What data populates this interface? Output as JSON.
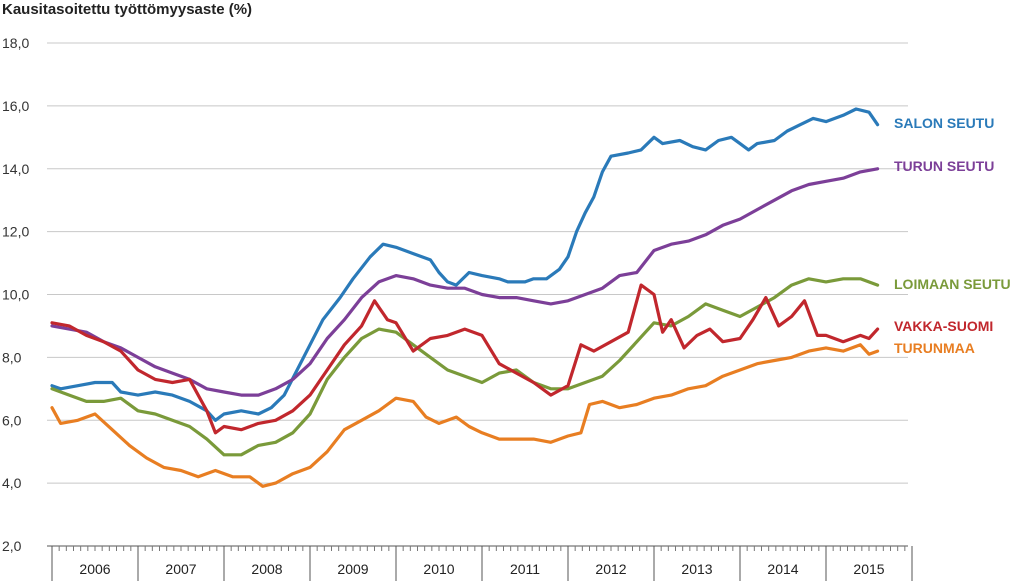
{
  "chart_data": {
    "type": "line",
    "title": "Kausitasoitettu työttömyysaste (%)",
    "xlabel": "",
    "ylabel": "",
    "ylim": [
      2.0,
      18.0
    ],
    "yticks": [
      "2,0",
      "4,0",
      "6,0",
      "8,0",
      "10,0",
      "12,0",
      "14,0",
      "16,0",
      "18,0"
    ],
    "ytick_values": [
      2,
      4,
      6,
      8,
      10,
      12,
      14,
      16,
      18
    ],
    "xlim": [
      2006.0,
      2015.7
    ],
    "years": [
      "2006",
      "2007",
      "2008",
      "2009",
      "2010",
      "2011",
      "2012",
      "2013",
      "2014",
      "2015"
    ],
    "grid": true,
    "series": [
      {
        "name": "SALON SEUTU",
        "color": "#2a7ab9",
        "points": [
          [
            2006.0,
            7.1
          ],
          [
            2006.1,
            7.0
          ],
          [
            2006.3,
            7.1
          ],
          [
            2006.5,
            7.2
          ],
          [
            2006.7,
            7.2
          ],
          [
            2006.8,
            6.9
          ],
          [
            2007.0,
            6.8
          ],
          [
            2007.2,
            6.9
          ],
          [
            2007.4,
            6.8
          ],
          [
            2007.6,
            6.6
          ],
          [
            2007.8,
            6.3
          ],
          [
            2007.9,
            6.0
          ],
          [
            2008.0,
            6.2
          ],
          [
            2008.2,
            6.3
          ],
          [
            2008.4,
            6.2
          ],
          [
            2008.55,
            6.4
          ],
          [
            2008.7,
            6.8
          ],
          [
            2008.85,
            7.6
          ],
          [
            2009.0,
            8.4
          ],
          [
            2009.15,
            9.2
          ],
          [
            2009.35,
            9.9
          ],
          [
            2009.5,
            10.5
          ],
          [
            2009.7,
            11.2
          ],
          [
            2009.85,
            11.6
          ],
          [
            2010.0,
            11.5
          ],
          [
            2010.2,
            11.3
          ],
          [
            2010.4,
            11.1
          ],
          [
            2010.5,
            10.7
          ],
          [
            2010.6,
            10.4
          ],
          [
            2010.7,
            10.3
          ],
          [
            2010.85,
            10.7
          ],
          [
            2011.0,
            10.6
          ],
          [
            2011.2,
            10.5
          ],
          [
            2011.3,
            10.4
          ],
          [
            2011.5,
            10.4
          ],
          [
            2011.6,
            10.5
          ],
          [
            2011.75,
            10.5
          ],
          [
            2011.9,
            10.8
          ],
          [
            2012.0,
            11.2
          ],
          [
            2012.1,
            12.0
          ],
          [
            2012.2,
            12.6
          ],
          [
            2012.3,
            13.1
          ],
          [
            2012.4,
            13.9
          ],
          [
            2012.5,
            14.4
          ],
          [
            2012.7,
            14.5
          ],
          [
            2012.85,
            14.6
          ],
          [
            2013.0,
            15.0
          ],
          [
            2013.1,
            14.8
          ],
          [
            2013.3,
            14.9
          ],
          [
            2013.45,
            14.7
          ],
          [
            2013.6,
            14.6
          ],
          [
            2013.75,
            14.9
          ],
          [
            2013.9,
            15.0
          ],
          [
            2014.0,
            14.8
          ],
          [
            2014.1,
            14.6
          ],
          [
            2014.2,
            14.8
          ],
          [
            2014.4,
            14.9
          ],
          [
            2014.55,
            15.2
          ],
          [
            2014.7,
            15.4
          ],
          [
            2014.85,
            15.6
          ],
          [
            2015.0,
            15.5
          ],
          [
            2015.2,
            15.7
          ],
          [
            2015.35,
            15.9
          ],
          [
            2015.5,
            15.8
          ],
          [
            2015.6,
            15.4
          ]
        ]
      },
      {
        "name": "TURUN SEUTU",
        "color": "#7c3f98",
        "points": [
          [
            2006.0,
            9.0
          ],
          [
            2006.2,
            8.9
          ],
          [
            2006.4,
            8.8
          ],
          [
            2006.6,
            8.5
          ],
          [
            2006.8,
            8.3
          ],
          [
            2007.0,
            8.0
          ],
          [
            2007.2,
            7.7
          ],
          [
            2007.4,
            7.5
          ],
          [
            2007.6,
            7.3
          ],
          [
            2007.8,
            7.0
          ],
          [
            2008.0,
            6.9
          ],
          [
            2008.2,
            6.8
          ],
          [
            2008.4,
            6.8
          ],
          [
            2008.6,
            7.0
          ],
          [
            2008.8,
            7.3
          ],
          [
            2009.0,
            7.8
          ],
          [
            2009.2,
            8.6
          ],
          [
            2009.4,
            9.2
          ],
          [
            2009.6,
            9.9
          ],
          [
            2009.8,
            10.4
          ],
          [
            2010.0,
            10.6
          ],
          [
            2010.2,
            10.5
          ],
          [
            2010.4,
            10.3
          ],
          [
            2010.6,
            10.2
          ],
          [
            2010.8,
            10.2
          ],
          [
            2011.0,
            10.0
          ],
          [
            2011.2,
            9.9
          ],
          [
            2011.4,
            9.9
          ],
          [
            2011.6,
            9.8
          ],
          [
            2011.8,
            9.7
          ],
          [
            2012.0,
            9.8
          ],
          [
            2012.2,
            10.0
          ],
          [
            2012.4,
            10.2
          ],
          [
            2012.6,
            10.6
          ],
          [
            2012.8,
            10.7
          ],
          [
            2013.0,
            11.4
          ],
          [
            2013.2,
            11.6
          ],
          [
            2013.4,
            11.7
          ],
          [
            2013.6,
            11.9
          ],
          [
            2013.8,
            12.2
          ],
          [
            2014.0,
            12.4
          ],
          [
            2014.2,
            12.7
          ],
          [
            2014.4,
            13.0
          ],
          [
            2014.6,
            13.3
          ],
          [
            2014.8,
            13.5
          ],
          [
            2015.0,
            13.6
          ],
          [
            2015.2,
            13.7
          ],
          [
            2015.4,
            13.9
          ],
          [
            2015.6,
            14.0
          ]
        ]
      },
      {
        "name": "LOIMAAN SEUTU",
        "color": "#7a9a3a",
        "points": [
          [
            2006.0,
            7.0
          ],
          [
            2006.2,
            6.8
          ],
          [
            2006.4,
            6.6
          ],
          [
            2006.6,
            6.6
          ],
          [
            2006.8,
            6.7
          ],
          [
            2007.0,
            6.3
          ],
          [
            2007.2,
            6.2
          ],
          [
            2007.4,
            6.0
          ],
          [
            2007.6,
            5.8
          ],
          [
            2007.8,
            5.4
          ],
          [
            2008.0,
            4.9
          ],
          [
            2008.2,
            4.9
          ],
          [
            2008.4,
            5.2
          ],
          [
            2008.6,
            5.3
          ],
          [
            2008.8,
            5.6
          ],
          [
            2009.0,
            6.2
          ],
          [
            2009.2,
            7.3
          ],
          [
            2009.4,
            8.0
          ],
          [
            2009.6,
            8.6
          ],
          [
            2009.8,
            8.9
          ],
          [
            2010.0,
            8.8
          ],
          [
            2010.2,
            8.4
          ],
          [
            2010.4,
            8.0
          ],
          [
            2010.6,
            7.6
          ],
          [
            2010.8,
            7.4
          ],
          [
            2011.0,
            7.2
          ],
          [
            2011.2,
            7.5
          ],
          [
            2011.4,
            7.6
          ],
          [
            2011.6,
            7.2
          ],
          [
            2011.8,
            7.0
          ],
          [
            2012.0,
            7.0
          ],
          [
            2012.2,
            7.2
          ],
          [
            2012.4,
            7.4
          ],
          [
            2012.6,
            7.9
          ],
          [
            2012.8,
            8.5
          ],
          [
            2013.0,
            9.1
          ],
          [
            2013.2,
            9.0
          ],
          [
            2013.4,
            9.3
          ],
          [
            2013.6,
            9.7
          ],
          [
            2013.8,
            9.5
          ],
          [
            2014.0,
            9.3
          ],
          [
            2014.2,
            9.6
          ],
          [
            2014.4,
            9.9
          ],
          [
            2014.6,
            10.3
          ],
          [
            2014.8,
            10.5
          ],
          [
            2015.0,
            10.4
          ],
          [
            2015.2,
            10.5
          ],
          [
            2015.4,
            10.5
          ],
          [
            2015.6,
            10.3
          ]
        ]
      },
      {
        "name": "VAKKA-SUOMI",
        "color": "#c1272d",
        "points": [
          [
            2006.0,
            9.1
          ],
          [
            2006.2,
            9.0
          ],
          [
            2006.4,
            8.7
          ],
          [
            2006.6,
            8.5
          ],
          [
            2006.8,
            8.2
          ],
          [
            2007.0,
            7.6
          ],
          [
            2007.2,
            7.3
          ],
          [
            2007.4,
            7.2
          ],
          [
            2007.6,
            7.3
          ],
          [
            2007.8,
            6.3
          ],
          [
            2007.9,
            5.6
          ],
          [
            2008.0,
            5.8
          ],
          [
            2008.2,
            5.7
          ],
          [
            2008.4,
            5.9
          ],
          [
            2008.6,
            6.0
          ],
          [
            2008.8,
            6.3
          ],
          [
            2009.0,
            6.8
          ],
          [
            2009.2,
            7.6
          ],
          [
            2009.4,
            8.4
          ],
          [
            2009.6,
            9.0
          ],
          [
            2009.75,
            9.8
          ],
          [
            2009.9,
            9.2
          ],
          [
            2010.0,
            9.1
          ],
          [
            2010.2,
            8.2
          ],
          [
            2010.4,
            8.6
          ],
          [
            2010.6,
            8.7
          ],
          [
            2010.8,
            8.9
          ],
          [
            2011.0,
            8.7
          ],
          [
            2011.2,
            7.8
          ],
          [
            2011.4,
            7.5
          ],
          [
            2011.6,
            7.2
          ],
          [
            2011.8,
            6.8
          ],
          [
            2012.0,
            7.1
          ],
          [
            2012.15,
            8.4
          ],
          [
            2012.3,
            8.2
          ],
          [
            2012.5,
            8.5
          ],
          [
            2012.7,
            8.8
          ],
          [
            2012.85,
            10.3
          ],
          [
            2013.0,
            10.0
          ],
          [
            2013.1,
            8.8
          ],
          [
            2013.2,
            9.2
          ],
          [
            2013.35,
            8.3
          ],
          [
            2013.5,
            8.7
          ],
          [
            2013.65,
            8.9
          ],
          [
            2013.8,
            8.5
          ],
          [
            2014.0,
            8.6
          ],
          [
            2014.15,
            9.2
          ],
          [
            2014.3,
            9.9
          ],
          [
            2014.45,
            9.0
          ],
          [
            2014.6,
            9.3
          ],
          [
            2014.75,
            9.8
          ],
          [
            2014.9,
            8.7
          ],
          [
            2015.0,
            8.7
          ],
          [
            2015.2,
            8.5
          ],
          [
            2015.4,
            8.7
          ],
          [
            2015.5,
            8.6
          ],
          [
            2015.6,
            8.9
          ]
        ]
      },
      {
        "name": "TURUNMAA",
        "color": "#e87e22",
        "points": [
          [
            2006.0,
            6.4
          ],
          [
            2006.1,
            5.9
          ],
          [
            2006.3,
            6.0
          ],
          [
            2006.5,
            6.2
          ],
          [
            2006.7,
            5.7
          ],
          [
            2006.9,
            5.2
          ],
          [
            2007.1,
            4.8
          ],
          [
            2007.3,
            4.5
          ],
          [
            2007.5,
            4.4
          ],
          [
            2007.7,
            4.2
          ],
          [
            2007.9,
            4.4
          ],
          [
            2008.1,
            4.2
          ],
          [
            2008.3,
            4.2
          ],
          [
            2008.45,
            3.9
          ],
          [
            2008.6,
            4.0
          ],
          [
            2008.8,
            4.3
          ],
          [
            2009.0,
            4.5
          ],
          [
            2009.2,
            5.0
          ],
          [
            2009.4,
            5.7
          ],
          [
            2009.6,
            6.0
          ],
          [
            2009.8,
            6.3
          ],
          [
            2010.0,
            6.7
          ],
          [
            2010.2,
            6.6
          ],
          [
            2010.35,
            6.1
          ],
          [
            2010.5,
            5.9
          ],
          [
            2010.7,
            6.1
          ],
          [
            2010.85,
            5.8
          ],
          [
            2011.0,
            5.6
          ],
          [
            2011.2,
            5.4
          ],
          [
            2011.4,
            5.4
          ],
          [
            2011.6,
            5.4
          ],
          [
            2011.8,
            5.3
          ],
          [
            2012.0,
            5.5
          ],
          [
            2012.15,
            5.6
          ],
          [
            2012.25,
            6.5
          ],
          [
            2012.4,
            6.6
          ],
          [
            2012.6,
            6.4
          ],
          [
            2012.8,
            6.5
          ],
          [
            2013.0,
            6.7
          ],
          [
            2013.2,
            6.8
          ],
          [
            2013.4,
            7.0
          ],
          [
            2013.6,
            7.1
          ],
          [
            2013.8,
            7.4
          ],
          [
            2014.0,
            7.6
          ],
          [
            2014.2,
            7.8
          ],
          [
            2014.4,
            7.9
          ],
          [
            2014.6,
            8.0
          ],
          [
            2014.8,
            8.2
          ],
          [
            2015.0,
            8.3
          ],
          [
            2015.2,
            8.2
          ],
          [
            2015.4,
            8.4
          ],
          [
            2015.5,
            8.1
          ],
          [
            2015.6,
            8.2
          ]
        ]
      }
    ]
  }
}
